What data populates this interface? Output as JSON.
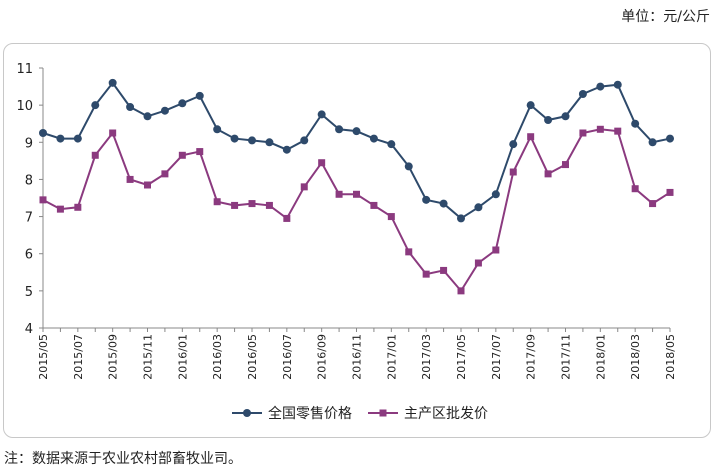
{
  "unit_label": "单位：元/公斤",
  "footnote": "注：数据来源于农业农村部畜牧业司。",
  "chart_data": {
    "type": "line",
    "ylim": [
      4,
      11
    ],
    "yticks": [
      4,
      5,
      6,
      7,
      8,
      9,
      10,
      11
    ],
    "grid": false,
    "legend_position": "bottom",
    "x": [
      "2015/05",
      "2015/06",
      "2015/07",
      "2015/08",
      "2015/09",
      "2015/10",
      "2015/11",
      "2015/12",
      "2016/01",
      "2016/02",
      "2016/03",
      "2016/04",
      "2016/05",
      "2016/06",
      "2016/07",
      "2016/08",
      "2016/09",
      "2016/10",
      "2016/11",
      "2016/12",
      "2017/01",
      "2017/02",
      "2017/03",
      "2017/04",
      "2017/05",
      "2017/06",
      "2017/07",
      "2017/08",
      "2017/09",
      "2017/10",
      "2017/11",
      "2017/12",
      "2018/01",
      "2018/02",
      "2018/03",
      "2018/04",
      "2018/05"
    ],
    "x_tick_labels": [
      "2015/05",
      "",
      "2015/07",
      "",
      "2015/09",
      "",
      "2015/11",
      "",
      "2016/01",
      "",
      "2016/03",
      "",
      "2016/05",
      "",
      "2016/07",
      "",
      "2016/09",
      "",
      "2016/11",
      "",
      "2017/01",
      "",
      "2017/03",
      "",
      "2017/05",
      "",
      "2017/07",
      "",
      "2017/09",
      "",
      "2017/11",
      "",
      "2018/01",
      "",
      "2018/03",
      "",
      "2018/05"
    ],
    "series": [
      {
        "name": "全国零售价格",
        "color": "#2e4a6b",
        "marker": "circle",
        "values": [
          9.25,
          9.1,
          9.1,
          10.0,
          10.6,
          9.95,
          9.7,
          9.85,
          10.05,
          10.25,
          9.35,
          9.1,
          9.05,
          9.0,
          8.8,
          9.05,
          9.75,
          9.35,
          9.3,
          9.1,
          8.95,
          8.35,
          7.45,
          7.35,
          6.95,
          7.25,
          7.6,
          8.95,
          10.0,
          9.6,
          9.7,
          10.3,
          10.5,
          10.55,
          9.5,
          9.0,
          9.1
        ]
      },
      {
        "name": "主产区批发价",
        "color": "#8b3a7f",
        "marker": "square",
        "values": [
          7.45,
          7.2,
          7.25,
          8.65,
          9.25,
          8.0,
          7.85,
          8.15,
          8.65,
          8.75,
          7.4,
          7.3,
          7.35,
          7.3,
          6.95,
          7.8,
          8.45,
          7.6,
          7.6,
          7.3,
          7.0,
          6.05,
          5.45,
          5.55,
          5.0,
          5.75,
          6.1,
          8.2,
          9.15,
          8.15,
          8.4,
          9.25,
          9.35,
          9.3,
          7.75,
          7.35,
          7.65
        ]
      }
    ]
  }
}
